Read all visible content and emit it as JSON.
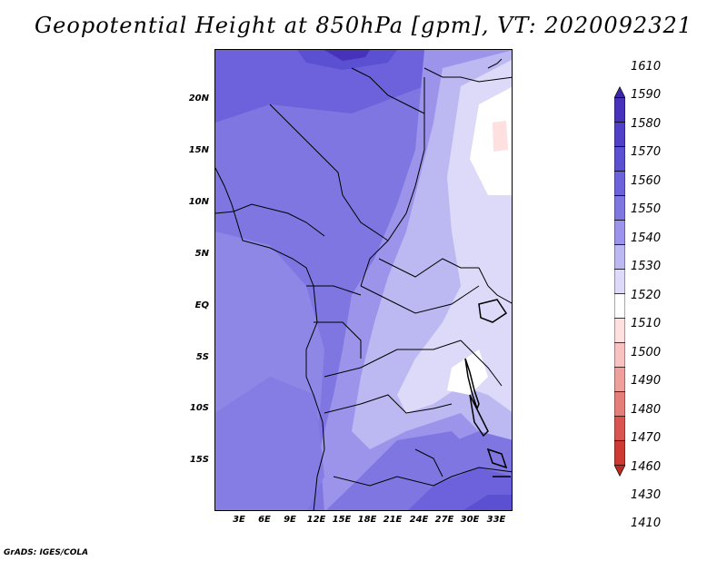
{
  "title": "Geopotential Height at 850hPa [gpm], VT: 2020092321",
  "credit": "GrADS: IGES/COLA",
  "map": {
    "lon_range": [
      0,
      35
    ],
    "lat_range": [
      -19.5,
      25
    ],
    "lat_ticks": [
      {
        "value": 20,
        "label": "20N"
      },
      {
        "value": 15,
        "label": "15N"
      },
      {
        "value": 10,
        "label": "10N"
      },
      {
        "value": 5,
        "label": "5N"
      },
      {
        "value": 0,
        "label": "EQ"
      },
      {
        "value": -5,
        "label": "5S"
      },
      {
        "value": -10,
        "label": "10S"
      },
      {
        "value": -15,
        "label": "15S"
      }
    ],
    "lon_ticks": [
      {
        "value": 3,
        "label": "3E"
      },
      {
        "value": 6,
        "label": "6E"
      },
      {
        "value": 9,
        "label": "9E"
      },
      {
        "value": 12,
        "label": "12E"
      },
      {
        "value": 15,
        "label": "15E"
      },
      {
        "value": 18,
        "label": "18E"
      },
      {
        "value": 21,
        "label": "21E"
      },
      {
        "value": 24,
        "label": "24E"
      },
      {
        "value": 27,
        "label": "27E"
      },
      {
        "value": 30,
        "label": "30E"
      },
      {
        "value": 33,
        "label": "33E"
      }
    ]
  },
  "colorbar": {
    "levels": [
      "1610",
      "1590",
      "1580",
      "1570",
      "1560",
      "1550",
      "1540",
      "1530",
      "1520",
      "1510",
      "1500",
      "1490",
      "1480",
      "1470",
      "1460",
      "1430",
      "1410"
    ],
    "colors": [
      "#3b27a8",
      "#4632bb",
      "#5040c8",
      "#5b4fd2",
      "#6d62db",
      "#7f76e2",
      "#9b94ea",
      "#bcb8f1",
      "#dcdaf8",
      "#ffffff",
      "#fde0df",
      "#f8c2c0",
      "#efa09d",
      "#e57e79",
      "#da5550",
      "#cc3a33",
      "#b82a22"
    ]
  }
}
